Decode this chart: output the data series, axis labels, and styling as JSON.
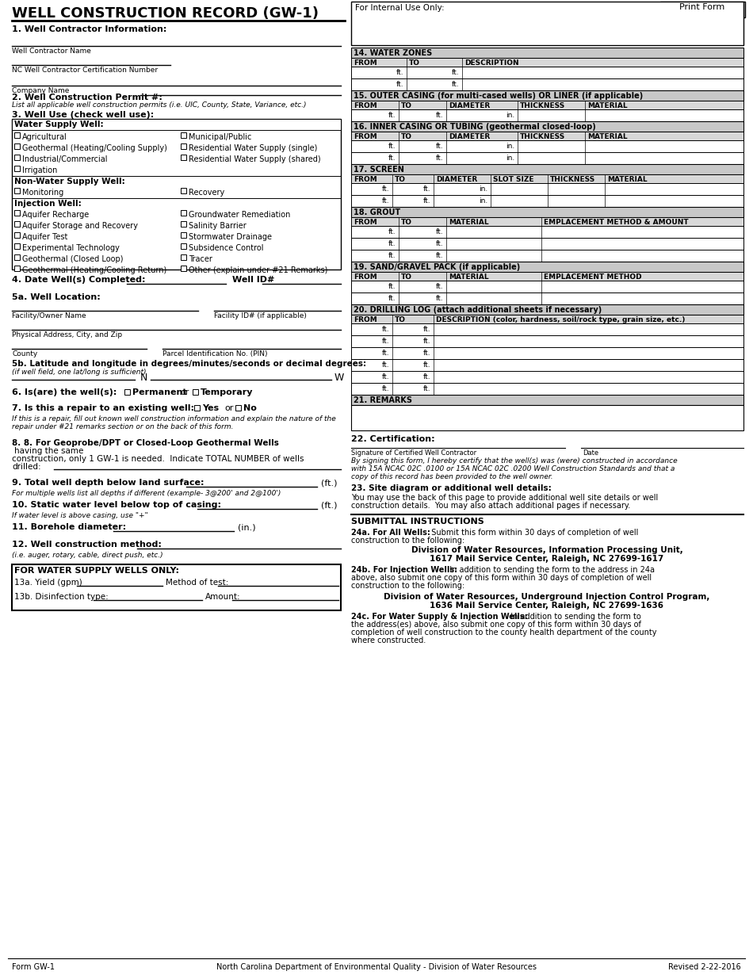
{
  "title": "WELL CONSTRUCTION RECORD (GW-1)",
  "print_form_btn": "Print Form",
  "bg_color": "#ffffff",
  "gray_header": "#c8c8c8",
  "gray_col_header": "#d8d8d8",
  "section1_label": "1. Well Contractor Information:",
  "section2_label": "2. Well Construction Permit #:",
  "section2_italic": "List all applicable well construction permits (i.e. UIC, County, State, Variance, etc.)",
  "section3_label": "3. Well Use (check well use):",
  "section4_label": "4. Date Well(s) Completed:",
  "well_id_label": "Well ID#",
  "section5a_label": "5a. Well Location:",
  "section5b_label": "5b. Latitude and longitude in degrees/minutes/seconds or decimal degrees:",
  "section5b_sub": "(if well field, one lat/long is sufficient)",
  "section6_label": "6. Is(are) the well(s):",
  "section6_permanent": "Permanent",
  "section6_or": "or",
  "section6_temporary": "Temporary",
  "section7_label": "7. Is this a repair to an existing well:",
  "section7_yes": "Yes",
  "section7_or": "or",
  "section7_no": "No",
  "section7_italic": "If this is a repair, fill out known well construction information and explain the nature of the\nrepair under #21 remarks section or on the back of this form.",
  "section8_bold": "8. For Geoprobe/DPT or Closed-Loop Geothermal Wells",
  "section8_normal": " having the same\nconstruction, only 1 GW-1 is needed.  Indicate TOTAL NUMBER of wells\ndrilled:",
  "section9_label": "9. Total well depth below land surface:",
  "section9_unit": "(ft.)",
  "section9_sub": "For multiple wells list all depths if different (example- 3@200' and 2@100')",
  "section10_label": "10. Static water level below top of casing:",
  "section10_unit": "(ft.)",
  "section10_sub": "If water level is above casing, use \"+\"",
  "section11_label": "11. Borehole diameter:",
  "section11_unit": "(in.)",
  "section12_label": "12. Well construction method:",
  "section12_sub": "(i.e. auger, rotary, cable, direct push, etc.)",
  "water_supply_box_label": "FOR WATER SUPPLY WELLS ONLY:",
  "section13a_label": "13a. Yield (gpm)",
  "section13a_method": "Method of test:",
  "section13b_label": "13b. Disinfection type:",
  "section13b_amount": "Amount:",
  "right_col_internal": "For Internal Use Only:",
  "sec14_title": "14. WATER ZONES",
  "sec14_from": "FROM",
  "sec14_to": "TO",
  "sec14_desc": "DESCRIPTION",
  "sec15_title": "15. OUTER CASING (for multi-cased wells) OR LINER (if applicable)",
  "sec15_from": "FROM",
  "sec15_to": "TO",
  "sec15_diam": "DIAMETER",
  "sec15_thick": "THICKNESS",
  "sec15_mat": "MATERIAL",
  "sec16_title": "16. INNER CASING OR TUBING (geothermal closed-loop)",
  "sec16_from": "FROM",
  "sec16_to": "TO",
  "sec16_diam": "DIAMETER",
  "sec16_thick": "THICKNESS",
  "sec16_mat": "MATERIAL",
  "sec17_title": "17. SCREEN",
  "sec17_from": "FROM",
  "sec17_to": "TO",
  "sec17_diam": "DIAMETER",
  "sec17_slot": "SLOT SIZE",
  "sec17_thick": "THICKNESS",
  "sec17_mat": "MATERIAL",
  "sec18_title": "18. GROUT",
  "sec18_from": "FROM",
  "sec18_to": "TO",
  "sec18_mat": "MATERIAL",
  "sec18_emp": "EMPLACEMENT METHOD & AMOUNT",
  "sec19_title": "19. SAND/GRAVEL PACK (if applicable)",
  "sec19_from": "FROM",
  "sec19_to": "TO",
  "sec19_mat": "MATERIAL",
  "sec19_emp": "EMPLACEMENT METHOD",
  "sec20_title": "20. DRILLING LOG (attach additional sheets if necessary)",
  "sec20_from": "FROM",
  "sec20_to": "TO",
  "sec20_desc": "DESCRIPTION (color, hardness, soil/rock type, grain size, etc.)",
  "sec21_title": "21. REMARKS",
  "sec22_title": "22. Certification:",
  "sec22_sig": "Signature of Certified Well Contractor",
  "sec22_date": "Date",
  "sec22_cert": "By signing this form, I hereby certify that the well(s) was (were) constructed in accordance\nwith 15A NCAC 02C .0100 or 15A NCAC 02C .0200 Well Construction Standards and that a\ncopy of this record has been provided to the well owner.",
  "sec23_title": "23. Site diagram or additional well details:",
  "sec23_text": "You may use the back of this page to provide additional well site details or well\nconstruction details.  You may also attach additional pages if necessary.",
  "submit_title": "SUBMITTAL INSTRUCTIONS",
  "sub24a_bold": "24a. For All Wells:",
  "sub24a_text": "  Submit this form within 30 days of completion of well\nconstruction to the following:",
  "sub24a_addr1": "Division of Water Resources, Information Processing Unit,",
  "sub24a_addr2": "1617 Mail Service Center, Raleigh, NC 27699-1617",
  "sub24b_bold": "24b. For Injection Wells:",
  "sub24b_text": "  In addition to sending the form to the address in 24a\nabove, also submit one copy of this form within 30 days of completion of well\nconstruction to the following:",
  "sub24b_addr1": "Division of Water Resources, Underground Injection Control Program,",
  "sub24b_addr2": "1636 Mail Service Center, Raleigh, NC 27699-1636",
  "sub24c_bold": "24c. For Water Supply & Injection Wells:",
  "sub24c_text": "  In addition to sending the form to\nthe address(es) above, also submit one copy of this form within 30 days of\ncompletion of well construction to the county health department of the county\nwhere constructed.",
  "footer_left": "Form GW-1",
  "footer_center": "North Carolina Department of Environmental Quality - Division of Water Resources",
  "footer_right": "Revised 2-22-2016",
  "well_contractor_name": "Well Contractor Name",
  "nc_cert_number": "NC Well Contractor Certification Number",
  "company_name": "Company Name",
  "facility_owner": "Facility/Owner Name",
  "facility_id": "Facility ID# (if applicable)",
  "physical_addr": "Physical Address, City, and Zip",
  "county": "County",
  "parcel_id": "Parcel Identification No. (PIN)"
}
